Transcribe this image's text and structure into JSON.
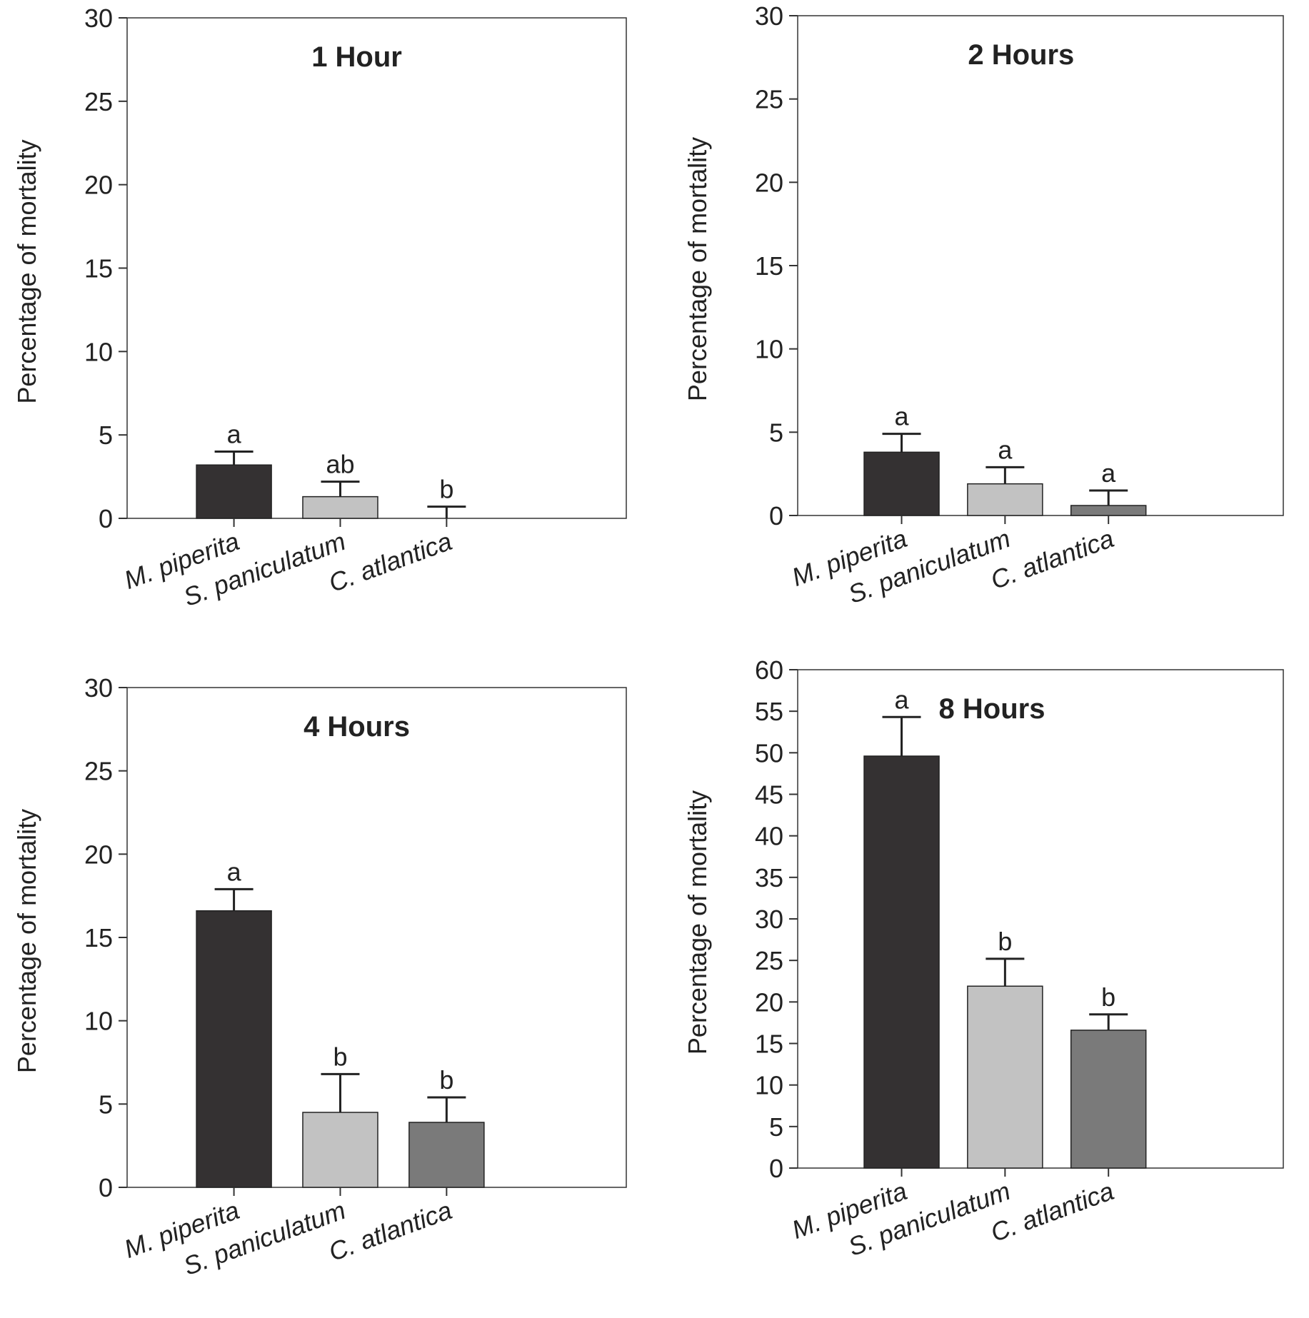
{
  "chart_data": [
    {
      "type": "bar",
      "title": "1 Hour",
      "ylabel": "Percentage of mortality",
      "xlabel": "",
      "categories": [
        "M. piperita",
        "S. paniculatum",
        "C. atlantica"
      ],
      "values": [
        3.2,
        1.3,
        0.0
      ],
      "error_upper": [
        0.8,
        0.9,
        0.7
      ],
      "significance": [
        "a",
        "ab",
        "b"
      ],
      "ylim": [
        0,
        30
      ],
      "yticks": [
        "0",
        "5",
        "10",
        "15",
        "20",
        "25",
        "30"
      ],
      "colors": [
        "#343132",
        "#c2c2c2",
        "#7a7a7a"
      ]
    },
    {
      "type": "bar",
      "title": "2 Hours",
      "ylabel": "Percentage of mortality",
      "xlabel": "",
      "categories": [
        "M. piperita",
        "S. paniculatum",
        "C. atlantica"
      ],
      "values": [
        3.8,
        1.9,
        0.6
      ],
      "error_upper": [
        1.1,
        1.0,
        0.9
      ],
      "significance": [
        "a",
        "a",
        "a"
      ],
      "ylim": [
        0,
        30
      ],
      "yticks": [
        "0",
        "5",
        "10",
        "15",
        "20",
        "25",
        "30"
      ],
      "colors": [
        "#343132",
        "#c2c2c2",
        "#7a7a7a"
      ]
    },
    {
      "type": "bar",
      "title": "4 Hours",
      "ylabel": "Percentage of mortality",
      "xlabel": "",
      "categories": [
        "M. piperita",
        "S. paniculatum",
        "C. atlantica"
      ],
      "values": [
        16.6,
        4.5,
        3.9
      ],
      "error_upper": [
        1.3,
        2.3,
        1.5
      ],
      "significance": [
        "a",
        "b",
        "b"
      ],
      "ylim": [
        0,
        30
      ],
      "yticks": [
        "0",
        "5",
        "10",
        "15",
        "20",
        "25",
        "30"
      ],
      "colors": [
        "#343132",
        "#c2c2c2",
        "#7a7a7a"
      ]
    },
    {
      "type": "bar",
      "title": "8 Hours",
      "ylabel": "Percentage of mortality",
      "xlabel": "",
      "categories": [
        "M. piperita",
        "S. paniculatum",
        "C. atlantica"
      ],
      "values": [
        49.6,
        21.9,
        16.6
      ],
      "error_upper": [
        4.7,
        3.3,
        1.9
      ],
      "significance": [
        "a",
        "b",
        "b"
      ],
      "ylim": [
        0,
        60
      ],
      "yticks": [
        "0",
        "5",
        "10",
        "15",
        "20",
        "25",
        "30",
        "35",
        "40",
        "45",
        "50",
        "55",
        "60"
      ],
      "colors": [
        "#343132",
        "#c2c2c2",
        "#7a7a7a"
      ]
    }
  ]
}
